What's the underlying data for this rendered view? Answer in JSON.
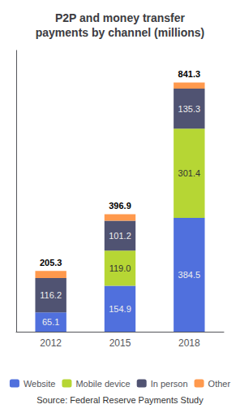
{
  "chart_data": {
    "type": "bar",
    "title": "P2P and money transfer\npayments by channel (millions)",
    "categories": [
      "2012",
      "2015",
      "2018"
    ],
    "stacked": true,
    "series": [
      {
        "name": "Website",
        "values": [
          65.1,
          154.9,
          384.5
        ],
        "data_labels": true
      },
      {
        "name": "Mobile device",
        "values": [
          0.0,
          119.0,
          301.4
        ],
        "value_labels": [
          null,
          "119.0",
          "301.4"
        ],
        "data_labels": true
      },
      {
        "name": "In person",
        "values": [
          116.2,
          101.2,
          135.3
        ],
        "data_labels": true
      },
      {
        "name": "Other",
        "values": [
          24.0,
          21.8,
          20.1
        ],
        "data_labels": false
      }
    ],
    "totals": [
      205.3,
      396.9,
      841.3
    ],
    "ylim": [
      0,
      950
    ],
    "tick_labels": "x",
    "grid": false,
    "legend": "bottom",
    "annotations": [
      "Source: Federal Reserve Payments Study"
    ]
  }
}
